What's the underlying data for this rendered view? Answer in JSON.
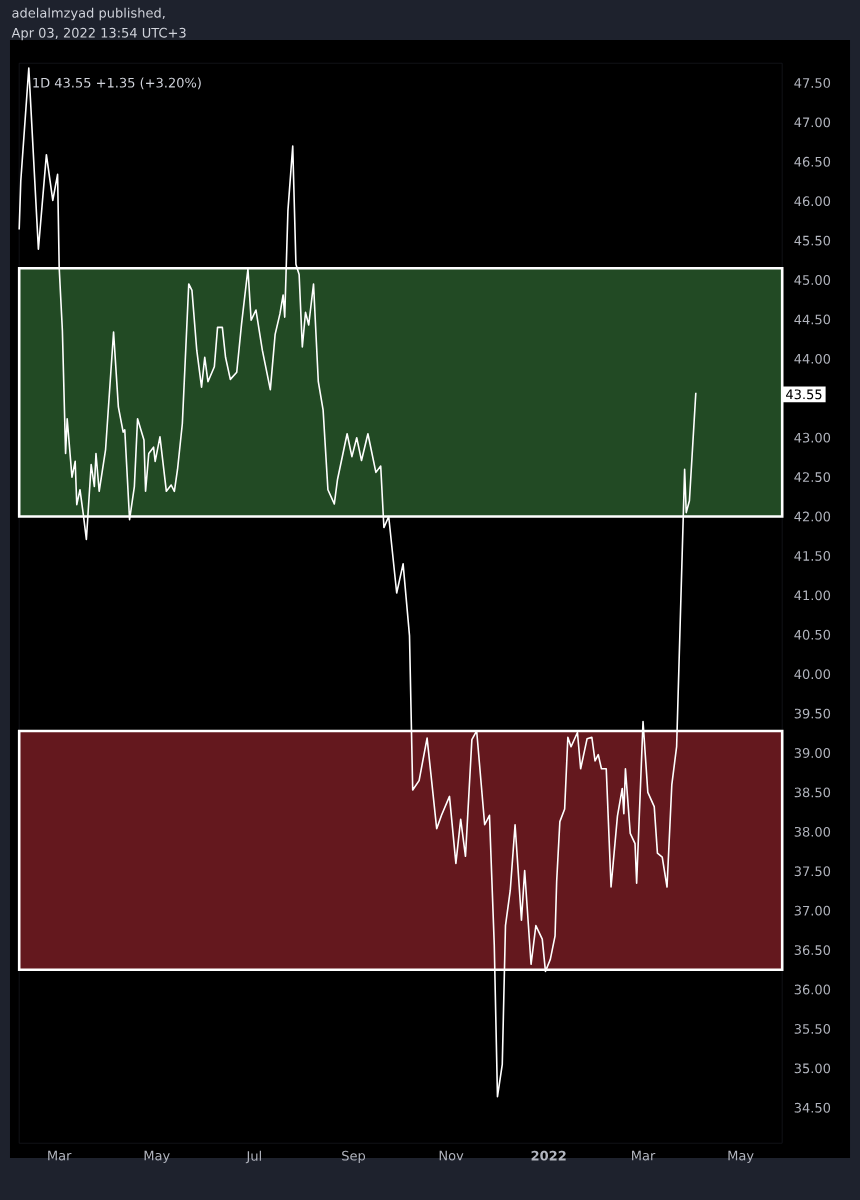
{
  "chart_data": {
    "type": "line",
    "title": "1D  43.55  +1.35 (+3.20%)",
    "annotations": [
      "adelalmzyad published,",
      "Apr 03, 2022 13:54 UTC+3",
      {
        "text": "43.55",
        "y": 43.55
      }
    ],
    "x": [
      "2021-02-04",
      "2021-02-05",
      "2021-02-10",
      "2021-02-16",
      "2021-02-21",
      "2021-02-25",
      "2021-02-28",
      "2021-03-01",
      "2021-03-03",
      "2021-03-05",
      "2021-03-06",
      "2021-03-09",
      "2021-03-11",
      "2021-03-12",
      "2021-03-14",
      "2021-03-16",
      "2021-03-18",
      "2021-03-21",
      "2021-03-23",
      "2021-03-24",
      "2021-03-26",
      "2021-03-30",
      "2021-04-04",
      "2021-04-07",
      "2021-04-10",
      "2021-04-11",
      "2021-04-14",
      "2021-04-17",
      "2021-04-19",
      "2021-04-23",
      "2021-04-24",
      "2021-04-26",
      "2021-04-29",
      "2021-04-30",
      "2021-05-03",
      "2021-05-07",
      "2021-05-10",
      "2021-05-12",
      "2021-05-14",
      "2021-05-17",
      "2021-05-21",
      "2021-05-23",
      "2021-05-26",
      "2021-05-29",
      "2021-05-31",
      "2021-06-02",
      "2021-06-06",
      "2021-06-08",
      "2021-06-11",
      "2021-06-13",
      "2021-06-16",
      "2021-06-20",
      "2021-06-23",
      "2021-06-27",
      "2021-06-29",
      "2021-07-02",
      "2021-07-06",
      "2021-07-11",
      "2021-07-14",
      "2021-07-17",
      "2021-07-19",
      "2021-07-20",
      "2021-07-22",
      "2021-07-25",
      "2021-07-27",
      "2021-07-29",
      "2021-07-31",
      "2021-08-02",
      "2021-08-04",
      "2021-08-07",
      "2021-08-10",
      "2021-08-13",
      "2021-08-16",
      "2021-08-20",
      "2021-08-22",
      "2021-08-28",
      "2021-08-31",
      "2021-09-03",
      "2021-09-06",
      "2021-09-10",
      "2021-09-15",
      "2021-09-18",
      "2021-09-20",
      "2021-09-23",
      "2021-09-28",
      "2021-10-02",
      "2021-10-06",
      "2021-10-08",
      "2021-10-12",
      "2021-10-17",
      "2021-10-23",
      "2021-10-26",
      "2021-10-31",
      "2021-11-04",
      "2021-11-07",
      "2021-11-10",
      "2021-11-14",
      "2021-11-17",
      "2021-11-22",
      "2021-11-25",
      "2021-11-28",
      "2021-11-30",
      "2021-12-03",
      "2021-12-05",
      "2021-12-08",
      "2021-12-11",
      "2021-12-15",
      "2021-12-17",
      "2021-12-21",
      "2021-12-24",
      "2021-12-28",
      "2021-12-30",
      "2022-01-02",
      "2022-01-05",
      "2022-01-06",
      "2022-01-08",
      "2022-01-11",
      "2022-01-13",
      "2022-01-15",
      "2022-01-19",
      "2022-01-21",
      "2022-01-25",
      "2022-01-28",
      "2022-01-30",
      "2022-02-01",
      "2022-02-03",
      "2022-02-06",
      "2022-02-09",
      "2022-02-13",
      "2022-02-16",
      "2022-02-17",
      "2022-02-18",
      "2022-02-21",
      "2022-02-24",
      "2022-02-25",
      "2022-03-01",
      "2022-03-04",
      "2022-03-08",
      "2022-03-10",
      "2022-03-13",
      "2022-03-16",
      "2022-03-19",
      "2022-03-22",
      "2022-03-27",
      "2022-03-28",
      "2022-03-30",
      "2022-04-03"
    ],
    "series": [
      {
        "color": "#ffffff",
        "values": [
          45.64,
          46.26,
          47.69,
          45.39,
          46.59,
          46.01,
          46.34,
          45.16,
          44.36,
          42.8,
          43.24,
          42.5,
          42.7,
          42.15,
          42.34,
          42.04,
          41.71,
          42.66,
          42.38,
          42.8,
          42.32,
          42.85,
          44.34,
          43.39,
          43.07,
          43.1,
          41.96,
          42.38,
          43.24,
          42.97,
          42.32,
          42.8,
          42.88,
          42.7,
          43.01,
          42.32,
          42.4,
          42.32,
          42.6,
          43.18,
          44.95,
          44.87,
          44.11,
          43.64,
          44.02,
          43.71,
          43.9,
          44.4,
          44.4,
          44.02,
          43.74,
          43.83,
          44.44,
          45.14,
          44.49,
          44.62,
          44.11,
          43.61,
          44.31,
          44.57,
          44.81,
          44.53,
          45.88,
          46.7,
          45.2,
          45.07,
          44.15,
          44.59,
          44.43,
          44.95,
          43.71,
          43.35,
          42.34,
          42.16,
          42.47,
          43.05,
          42.76,
          43.0,
          42.71,
          43.05,
          42.56,
          42.64,
          41.86,
          42.0,
          41.03,
          41.4,
          40.49,
          38.53,
          38.65,
          39.19,
          38.04,
          38.21,
          38.45,
          37.6,
          38.16,
          37.69,
          39.17,
          39.28,
          38.09,
          38.21,
          36.56,
          34.64,
          35.05,
          36.81,
          37.26,
          38.09,
          36.88,
          37.51,
          36.32,
          36.81,
          36.64,
          36.23,
          36.38,
          36.68,
          37.37,
          38.13,
          38.29,
          39.2,
          39.08,
          39.26,
          38.8,
          39.18,
          39.2,
          38.9,
          38.98,
          38.8,
          38.8,
          37.3,
          38.2,
          38.55,
          38.23,
          38.8,
          37.98,
          37.85,
          37.35,
          39.4,
          38.5,
          38.32,
          37.73,
          37.68,
          37.3,
          38.6,
          39.08,
          42.6,
          42.05,
          42.2,
          43.57
        ]
      }
    ],
    "bands": [
      {
        "axis": "y",
        "from": 42.0,
        "to": 45.15,
        "color": "#224a24"
      },
      {
        "axis": "y",
        "from": 36.25,
        "to": 39.28,
        "color": "#64181e"
      }
    ],
    "xlim": [
      "2021-02-04",
      "2022-05-27"
    ],
    "xticks": [
      {
        "value": "2021-03-01",
        "label": "Mar"
      },
      {
        "value": "2021-05-01",
        "label": "May"
      },
      {
        "value": "2021-07-01",
        "label": "Jul"
      },
      {
        "value": "2021-09-01",
        "label": "Sep"
      },
      {
        "value": "2021-11-01",
        "label": "Nov"
      },
      {
        "value": "2022-01-01",
        "label": "**2022**"
      },
      {
        "value": "2022-03-01",
        "label": "Mar"
      },
      {
        "value": "2022-05-01",
        "label": "May"
      }
    ],
    "ylim": [
      34.05,
      47.75
    ],
    "yticks": [
      {
        "value": 34.5,
        "label": "34.50"
      },
      {
        "value": 35,
        "label": "35.00"
      },
      {
        "value": 35.5,
        "label": "35.50"
      },
      {
        "value": 36,
        "label": "36.00"
      },
      {
        "value": 36.5,
        "label": "36.50"
      },
      {
        "value": 37,
        "label": "37.00"
      },
      {
        "value": 37.5,
        "label": "37.50"
      },
      {
        "value": 38,
        "label": "38.00"
      },
      {
        "value": 38.5,
        "label": "38.50"
      },
      {
        "value": 39,
        "label": "39.00"
      },
      {
        "value": 39.5,
        "label": "39.50"
      },
      {
        "value": 40,
        "label": "40.00"
      },
      {
        "value": 40.5,
        "label": "40.50"
      },
      {
        "value": 41,
        "label": "41.00"
      },
      {
        "value": 41.5,
        "label": "41.50"
      },
      {
        "value": 42,
        "label": "42.00"
      },
      {
        "value": 42.5,
        "label": "42.50"
      },
      {
        "value": 43,
        "label": "43.00"
      },
      {
        "value": 44,
        "label": "44.00"
      },
      {
        "value": 44.5,
        "label": "44.50"
      },
      {
        "value": 45,
        "label": "45.00"
      },
      {
        "value": 45.5,
        "label": "45.50"
      },
      {
        "value": 46,
        "label": "46.00"
      },
      {
        "value": 46.5,
        "label": "46.50"
      },
      {
        "value": 47,
        "label": "47.00"
      },
      {
        "value": 47.5,
        "label": "47.50"
      }
    ],
    "marker": "none"
  }
}
